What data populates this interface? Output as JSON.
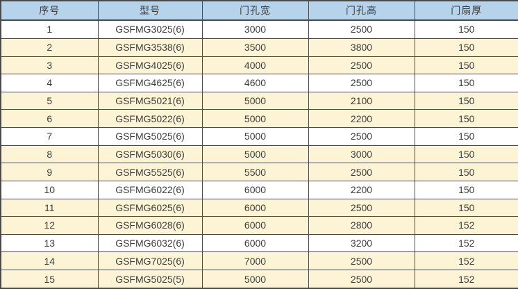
{
  "colors": {
    "header_bg": "#b5d3ea",
    "row_bg": "#ffffff",
    "row_alt_bg": "#fcf4d4",
    "border": "#4a4a4a",
    "text": "#3d3d3d"
  },
  "table": {
    "columns": [
      {
        "key": "serial",
        "label": "序号"
      },
      {
        "key": "model",
        "label": "型号"
      },
      {
        "key": "door-hole-width",
        "label": "门孔宽"
      },
      {
        "key": "door-hole-height",
        "label": "门孔高"
      },
      {
        "key": "door-leaf-thickness",
        "label": "门扇厚"
      }
    ],
    "rows": [
      [
        "1",
        "GSFMG3025(6)",
        "3000",
        "2500",
        "150"
      ],
      [
        "2",
        "GSFMG3538(6)",
        "3500",
        "3800",
        "150"
      ],
      [
        "3",
        "GSFMG4025(6)",
        "4000",
        "2500",
        "150"
      ],
      [
        "4",
        "GSFMG4625(6)",
        "4600",
        "2500",
        "150"
      ],
      [
        "5",
        "GSFMG5021(6)",
        "5000",
        "2100",
        "150"
      ],
      [
        "6",
        "GSFMG5022(6)",
        "5000",
        "2200",
        "150"
      ],
      [
        "7",
        "GSFMG5025(6)",
        "5000",
        "2500",
        "150"
      ],
      [
        "8",
        "GSFMG5030(6)",
        "5000",
        "3000",
        "150"
      ],
      [
        "9",
        "GSFMG5525(6)",
        "5500",
        "2500",
        "150"
      ],
      [
        "10",
        "GSFMG6022(6)",
        "6000",
        "2200",
        "150"
      ],
      [
        "11",
        "GSFMG6025(6)",
        "6000",
        "2500",
        "150"
      ],
      [
        "12",
        "GSFMG6028(6)",
        "6000",
        "2800",
        "152"
      ],
      [
        "13",
        "GSFMG6032(6)",
        "6000",
        "3200",
        "152"
      ],
      [
        "14",
        "GSFMG7025(6)",
        "7000",
        "2500",
        "152"
      ],
      [
        "15",
        "GSFMG5025(5)",
        "5000",
        "2500",
        "152"
      ]
    ],
    "row_shading_pattern": [
      "white",
      "yellow",
      "yellow"
    ]
  },
  "chart_data": {
    "type": "table",
    "title": "",
    "columns": [
      "序号",
      "型号",
      "门孔宽",
      "门孔高",
      "门扇厚"
    ],
    "rows": [
      [
        1,
        "GSFMG3025(6)",
        3000,
        2500,
        150
      ],
      [
        2,
        "GSFMG3538(6)",
        3500,
        3800,
        150
      ],
      [
        3,
        "GSFMG4025(6)",
        4000,
        2500,
        150
      ],
      [
        4,
        "GSFMG4625(6)",
        4600,
        2500,
        150
      ],
      [
        5,
        "GSFMG5021(6)",
        5000,
        2100,
        150
      ],
      [
        6,
        "GSFMG5022(6)",
        5000,
        2200,
        150
      ],
      [
        7,
        "GSFMG5025(6)",
        5000,
        2500,
        150
      ],
      [
        8,
        "GSFMG5030(6)",
        5000,
        3000,
        150
      ],
      [
        9,
        "GSFMG5525(6)",
        5500,
        2500,
        150
      ],
      [
        10,
        "GSFMG6022(6)",
        6000,
        2200,
        150
      ],
      [
        11,
        "GSFMG6025(6)",
        6000,
        2500,
        150
      ],
      [
        12,
        "GSFMG6028(6)",
        6000,
        2800,
        152
      ],
      [
        13,
        "GSFMG6032(6)",
        6000,
        3200,
        152
      ],
      [
        14,
        "GSFMG7025(6)",
        7000,
        2500,
        152
      ],
      [
        15,
        "GSFMG5025(5)",
        5000,
        2500,
        152
      ]
    ]
  }
}
